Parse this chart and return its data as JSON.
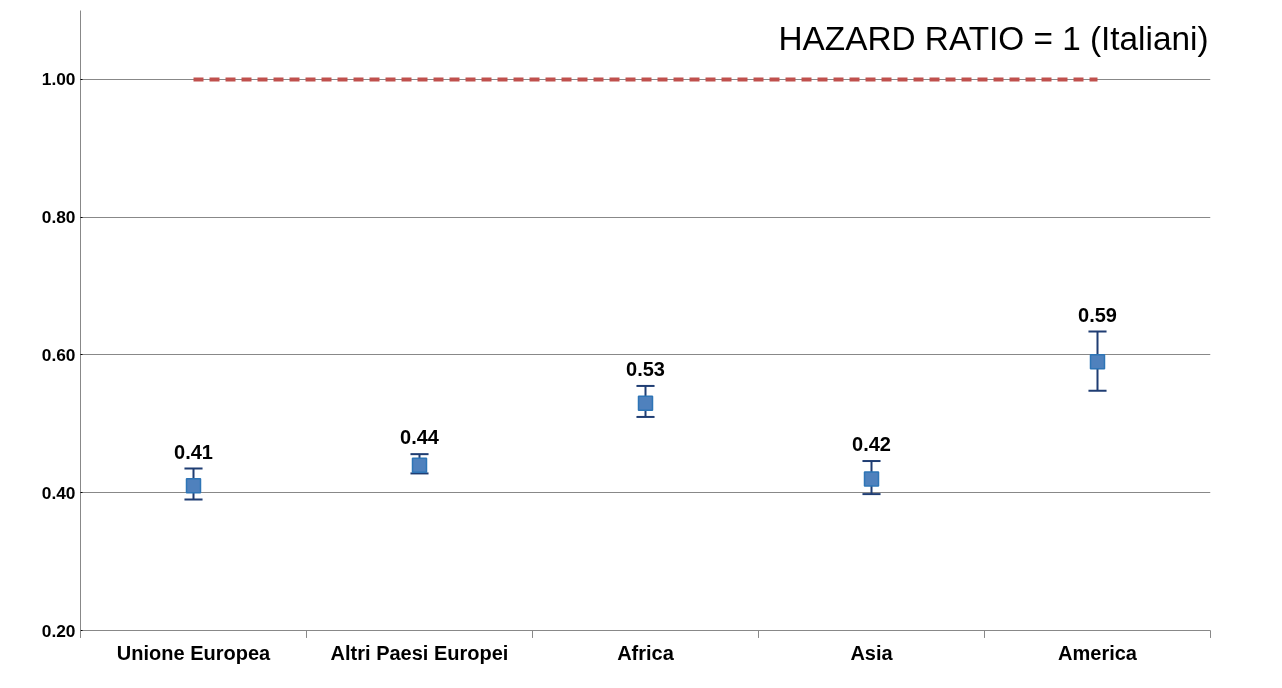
{
  "chart_data": {
    "type": "scatter",
    "categories": [
      "Unione Europea",
      "Altri Paesi Europei",
      "Africa",
      "Asia",
      "America"
    ],
    "series": [
      {
        "color": "#4f81bd",
        "values": [
          0.41,
          0.44,
          0.53,
          0.42,
          0.59
        ],
        "errors": [
          [
            0.39,
            0.435
          ],
          [
            0.428,
            0.456
          ],
          [
            0.51,
            0.555
          ],
          [
            0.398,
            0.446
          ],
          [
            0.548,
            0.634
          ]
        ]
      }
    ],
    "data_labels": true,
    "marker": "square",
    "ylim": [
      0.2,
      1.1
    ],
    "yticks": [
      {
        "value": 0.2,
        "label": "0.20"
      },
      {
        "value": 0.4,
        "label": "0.40"
      },
      {
        "value": 0.6,
        "label": "0.60"
      },
      {
        "value": 0.8,
        "label": "0.80"
      },
      {
        "value": 1.0,
        "label": "1.00"
      }
    ],
    "grid": "y",
    "ref_lines": [
      {
        "axis": "y",
        "value": 1.0,
        "label": "HAZARD RATIO = 1 (Italiani)",
        "color": "#c0504d",
        "line_style": "dashed"
      }
    ]
  }
}
